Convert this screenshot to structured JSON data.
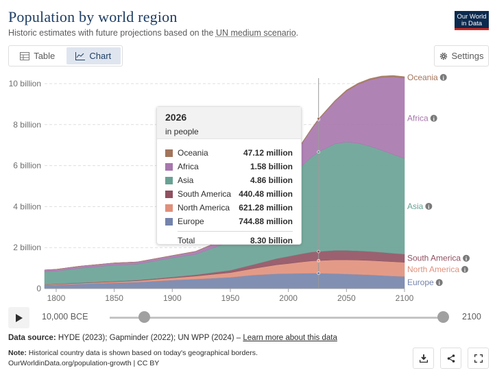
{
  "header": {
    "title": "Population by world region",
    "subtitle_prefix": "Historic estimates with future projections based on the ",
    "subtitle_link": "UN medium scenario",
    "subtitle_suffix": ".",
    "logo_line1": "Our World",
    "logo_line2": "in Data"
  },
  "tabs": {
    "table_label": "Table",
    "chart_label": "Chart",
    "active": "chart"
  },
  "settings_label": "Settings",
  "tooltip": {
    "year": "2026",
    "unit": "in people",
    "rows": [
      {
        "name": "Oceania",
        "value": "47.12 million",
        "color": "#a2745b"
      },
      {
        "name": "Africa",
        "value": "1.58 billion",
        "color": "#a776ad"
      },
      {
        "name": "Asia",
        "value": "4.86 billion",
        "color": "#68a193"
      },
      {
        "name": "South America",
        "value": "440.48 million",
        "color": "#905060"
      },
      {
        "name": "North America",
        "value": "621.28 million",
        "color": "#e0907b"
      },
      {
        "name": "Europe",
        "value": "744.88 million",
        "color": "#7383ab"
      }
    ],
    "total_label": "Total",
    "total_value": "8.30 billion"
  },
  "timeline": {
    "start_label": "10,000 BCE",
    "end_label": "2100",
    "start_fraction": 0.0,
    "end_fraction": 1.0
  },
  "footer": {
    "source_label": "Data source:",
    "source_text": " HYDE (2023); Gapminder (2022); UN WPP (2024) – ",
    "source_link": "Learn more about this data",
    "note_label": "Note:",
    "note_text": " Historical country data is shown based on today's geographical borders.",
    "url_text": "OurWorldinData.org/population-growth | CC BY"
  },
  "chart_data": {
    "type": "area",
    "stacked": true,
    "title": "Population by world region",
    "unit": "people",
    "xlim": [
      1790,
      2100
    ],
    "ylim": [
      0,
      10000000000
    ],
    "x_ticks": [
      1800,
      1850,
      1900,
      1950,
      2000,
      2050,
      2100
    ],
    "y_ticks": [
      {
        "value": 0,
        "label": "0"
      },
      {
        "value": 2000000000,
        "label": "2 billion"
      },
      {
        "value": 4000000000,
        "label": "4 billion"
      },
      {
        "value": 6000000000,
        "label": "6 billion"
      },
      {
        "value": 8000000000,
        "label": "8 billion"
      },
      {
        "value": 10000000000,
        "label": "10 billion"
      }
    ],
    "highlight_year": 2026,
    "x": [
      1790,
      1800,
      1820,
      1850,
      1870,
      1900,
      1920,
      1950,
      1970,
      1990,
      2000,
      2010,
      2020,
      2026,
      2040,
      2050,
      2060,
      2070,
      2080,
      2090,
      2100
    ],
    "series": [
      {
        "name": "Europe",
        "color": "#7383ab",
        "values": [
          0.17,
          0.18,
          0.22,
          0.28,
          0.31,
          0.41,
          0.46,
          0.55,
          0.66,
          0.72,
          0.73,
          0.74,
          0.75,
          0.745,
          0.73,
          0.71,
          0.69,
          0.67,
          0.64,
          0.61,
          0.59
        ]
      },
      {
        "name": "North America",
        "color": "#e0907b",
        "values": [
          0.02,
          0.03,
          0.04,
          0.05,
          0.07,
          0.11,
          0.15,
          0.23,
          0.32,
          0.44,
          0.49,
          0.55,
          0.6,
          0.62,
          0.67,
          0.69,
          0.7,
          0.7,
          0.7,
          0.7,
          0.69
        ]
      },
      {
        "name": "South America",
        "color": "#905060",
        "values": [
          0.01,
          0.01,
          0.02,
          0.02,
          0.03,
          0.04,
          0.06,
          0.11,
          0.19,
          0.3,
          0.35,
          0.39,
          0.43,
          0.44,
          0.46,
          0.46,
          0.45,
          0.44,
          0.43,
          0.41,
          0.4
        ]
      },
      {
        "name": "Asia",
        "color": "#68a193",
        "values": [
          0.62,
          0.63,
          0.71,
          0.79,
          0.78,
          0.94,
          1.0,
          1.4,
          2.1,
          3.2,
          3.74,
          4.21,
          4.64,
          4.86,
          5.2,
          5.29,
          5.25,
          5.14,
          4.99,
          4.83,
          4.67
        ]
      },
      {
        "name": "Africa",
        "color": "#a776ad",
        "values": [
          0.09,
          0.09,
          0.1,
          0.11,
          0.11,
          0.11,
          0.14,
          0.23,
          0.37,
          0.63,
          0.82,
          1.05,
          1.36,
          1.58,
          2.06,
          2.48,
          2.87,
          3.23,
          3.54,
          3.78,
          3.92
        ]
      },
      {
        "name": "Oceania",
        "color": "#a2745b",
        "values": [
          0.002,
          0.002,
          0.002,
          0.003,
          0.003,
          0.006,
          0.009,
          0.013,
          0.019,
          0.027,
          0.031,
          0.037,
          0.043,
          0.047,
          0.054,
          0.058,
          0.062,
          0.065,
          0.067,
          0.069,
          0.07
        ]
      }
    ],
    "series_unit_note": "values in billions"
  }
}
